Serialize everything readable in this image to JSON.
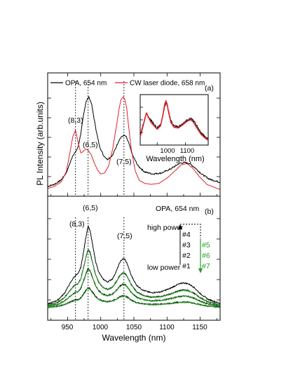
{
  "chart_data": [
    {
      "panel": "(a)",
      "type": "line",
      "ylabel": "PL Intensity (arb.units)",
      "xlim": [
        920,
        1180
      ],
      "ylim": [
        0,
        1.05
      ],
      "legend": {
        "placement": "top",
        "entries": [
          {
            "label": "OPA, 654 nm",
            "color": "#000000"
          },
          {
            "label": "CW laser diode, 658 nm",
            "color": "#e0202a"
          }
        ]
      },
      "series": [
        {
          "name": "OPA, 654 nm",
          "color": "#000000",
          "x": [
            920,
            930,
            940,
            948,
            954,
            958,
            962,
            966,
            970,
            974,
            978,
            982,
            986,
            990,
            994,
            998,
            1004,
            1010,
            1018,
            1024,
            1028,
            1032,
            1035,
            1038,
            1042,
            1048,
            1056,
            1066,
            1078,
            1092,
            1106,
            1118,
            1126,
            1134,
            1142,
            1152,
            1164,
            1180
          ],
          "y": [
            0.04,
            0.06,
            0.1,
            0.17,
            0.27,
            0.34,
            0.37,
            0.42,
            0.55,
            0.72,
            0.86,
            0.9,
            0.84,
            0.69,
            0.55,
            0.43,
            0.34,
            0.3,
            0.34,
            0.43,
            0.49,
            0.52,
            0.53,
            0.52,
            0.46,
            0.34,
            0.24,
            0.18,
            0.16,
            0.17,
            0.21,
            0.26,
            0.27,
            0.26,
            0.22,
            0.16,
            0.11,
            0.08
          ]
        },
        {
          "name": "CW laser diode, 658 nm",
          "color": "#e0202a",
          "x": [
            920,
            930,
            940,
            948,
            954,
            958,
            962,
            966,
            970,
            974,
            978,
            982,
            986,
            990,
            995,
            1000,
            1006,
            1012,
            1018,
            1024,
            1028,
            1031,
            1034,
            1036,
            1039,
            1042,
            1046,
            1052,
            1058,
            1066,
            1076,
            1088,
            1100,
            1112,
            1122,
            1130,
            1138,
            1148,
            1160,
            1180
          ],
          "y": [
            0.02,
            0.04,
            0.08,
            0.18,
            0.38,
            0.52,
            0.58,
            0.46,
            0.36,
            0.38,
            0.4,
            0.38,
            0.34,
            0.27,
            0.2,
            0.16,
            0.17,
            0.24,
            0.4,
            0.63,
            0.8,
            0.88,
            0.9,
            0.88,
            0.8,
            0.62,
            0.4,
            0.19,
            0.1,
            0.07,
            0.06,
            0.07,
            0.12,
            0.19,
            0.25,
            0.26,
            0.22,
            0.14,
            0.06,
            0.01
          ]
        }
      ],
      "peak_labels": [
        "(8,3)",
        "(6,5)",
        "(7,5)"
      ],
      "peak_markers_nm": [
        962,
        981,
        1035
      ],
      "inset": {
        "xlabel": "Wavelength (nm)",
        "xticks": [
          1000,
          1100
        ],
        "xlim": [
          940,
          1180
        ],
        "series": [
          {
            "name": "OPA, 654 nm",
            "color": "#000000",
            "x": [
              940,
              955,
              962,
              970,
              978,
              983,
              990,
              1000,
              1012,
              1020,
              1026,
              1031,
              1035,
              1040,
              1048,
              1060,
              1075,
              1090,
              1105,
              1118,
              1128,
              1140,
              1155,
              1170,
              1180
            ],
            "y": [
              0.16,
              0.52,
              0.66,
              0.58,
              0.5,
              0.47,
              0.4,
              0.33,
              0.4,
              0.6,
              0.82,
              0.9,
              0.86,
              0.72,
              0.5,
              0.38,
              0.36,
              0.42,
              0.5,
              0.55,
              0.5,
              0.38,
              0.22,
              0.12,
              0.08
            ]
          },
          {
            "name": "CW laser diode, 658 nm",
            "color": "#e0202a",
            "x": [
              940,
              955,
              962,
              970,
              978,
              983,
              990,
              1000,
              1012,
              1020,
              1026,
              1031,
              1035,
              1040,
              1048,
              1060,
              1075,
              1090,
              1105,
              1118,
              1128,
              1140,
              1155,
              1170,
              1180
            ],
            "y": [
              0.12,
              0.5,
              0.68,
              0.56,
              0.46,
              0.42,
              0.37,
              0.3,
              0.38,
              0.62,
              0.86,
              0.95,
              0.88,
              0.7,
              0.46,
              0.34,
              0.33,
              0.4,
              0.48,
              0.52,
              0.46,
              0.33,
              0.18,
              0.09,
              0.05
            ]
          }
        ]
      }
    },
    {
      "panel": "(b)",
      "type": "line",
      "xlabel": "Wavelength (nm)",
      "xlim": [
        920,
        1180
      ],
      "xticks": [
        950,
        1000,
        1050,
        1100,
        1150
      ],
      "annotation": "OPA, 654 nm",
      "peak_labels": [
        "(8,3)",
        "(6,5)",
        "(7,5)"
      ],
      "peak_markers_nm": [
        962,
        981,
        1035
      ],
      "power_legend": {
        "high_label": "high power",
        "low_label": "low power",
        "black_labels": [
          "#4",
          "#3",
          "#2",
          "#1"
        ],
        "green_labels": [
          "#5",
          "#6",
          "#7"
        ],
        "black_color": "#000000",
        "green_color": "#2a9a2a"
      },
      "shape_x": [
        920,
        935,
        945,
        952,
        958,
        962,
        966,
        970,
        974,
        978,
        981,
        984,
        988,
        992,
        997,
        1003,
        1010,
        1018,
        1024,
        1029,
        1033,
        1036,
        1040,
        1046,
        1054,
        1064,
        1076,
        1090,
        1104,
        1116,
        1124,
        1132,
        1140,
        1150,
        1162,
        1180
      ],
      "shape_y": [
        0.05,
        0.1,
        0.18,
        0.28,
        0.36,
        0.4,
        0.42,
        0.5,
        0.68,
        0.88,
        1.0,
        0.94,
        0.76,
        0.58,
        0.44,
        0.36,
        0.32,
        0.36,
        0.46,
        0.56,
        0.6,
        0.6,
        0.54,
        0.4,
        0.28,
        0.22,
        0.19,
        0.2,
        0.24,
        0.29,
        0.31,
        0.3,
        0.26,
        0.18,
        0.11,
        0.06
      ],
      "series": [
        {
          "name": "#4",
          "color": "#000000",
          "baseline": 0.05,
          "scale": 0.86
        },
        {
          "name": "#3",
          "color": "#000000",
          "baseline": 0.05,
          "scale": 0.62
        },
        {
          "name": "#2",
          "color": "#000000",
          "baseline": 0.05,
          "scale": 0.42
        },
        {
          "name": "#1",
          "color": "#000000",
          "baseline": 0.05,
          "scale": 0.22
        },
        {
          "name": "#5",
          "color": "#2a9a2a",
          "baseline": 0.05,
          "scale": 0.61
        },
        {
          "name": "#6",
          "color": "#2a9a2a",
          "baseline": 0.05,
          "scale": 0.41
        },
        {
          "name": "#7",
          "color": "#2a9a2a",
          "baseline": 0.05,
          "scale": 0.21
        }
      ]
    }
  ],
  "labels": {
    "panel_a": "(a)",
    "panel_b": "(b)",
    "ylabel": "PL Intensity (arb.units)",
    "xlabel": "Wavelength (nm)",
    "legend_opa": "OPA, 654 nm",
    "legend_cw": "CW laser diode, 658 nm",
    "ann_b": "OPA, 654 nm",
    "peak_83": "(8,3)",
    "peak_65": "(6,5)",
    "peak_75": "(7,5)",
    "inset_xlabel": "Wavelength (nm)",
    "inset_tick_1000": "1000",
    "inset_tick_1100": "1100",
    "tick_950": "950",
    "tick_1000": "1000",
    "tick_1050": "1050",
    "tick_1100": "1100",
    "tick_1150": "1150",
    "high_power": "high power",
    "low_power": "low power",
    "n4": "#4",
    "n3": "#3",
    "n2": "#2",
    "n1": "#1",
    "n5": "#5",
    "n6": "#6",
    "n7": "#7"
  }
}
